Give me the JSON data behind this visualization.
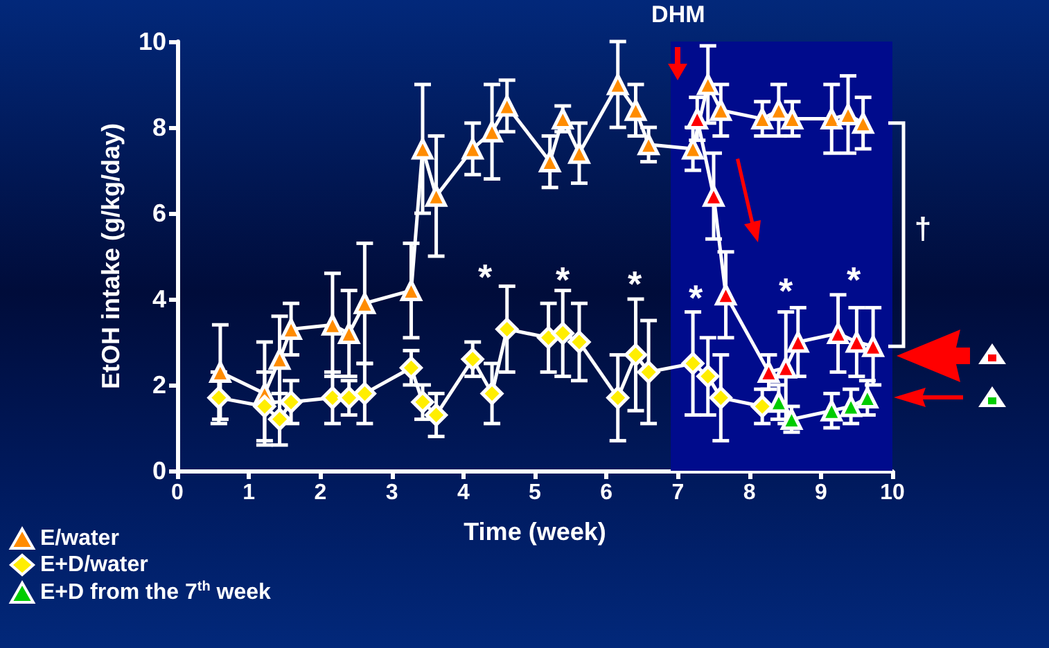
{
  "chart_data": {
    "type": "line",
    "xlabel": "Time (week)",
    "ylabel": "EtOH intake (g/kg/day)",
    "xlim": [
      0,
      10
    ],
    "xticks": [
      0,
      1,
      2,
      3,
      4,
      5,
      6,
      7,
      8,
      9,
      10
    ],
    "ylim": [
      0,
      10
    ],
    "yticks": [
      0,
      2,
      4,
      6,
      8,
      10
    ],
    "grid": false,
    "legend": "bottom left",
    "series": [
      {
        "name": "E/water",
        "color": "#ff8c00",
        "marker": "triangle",
        "x": [
          0.6,
          1.22,
          1.43,
          1.59,
          2.17,
          2.4,
          2.62,
          3.27,
          3.43,
          3.62,
          4.13,
          4.4,
          4.61,
          5.21,
          5.39,
          5.62,
          6.16,
          6.41,
          6.59,
          7.21,
          7.42,
          7.6,
          8.18,
          8.41,
          8.6,
          9.15,
          9.38,
          9.59
        ],
        "values": [
          2.3,
          1.8,
          2.6,
          3.3,
          3.4,
          3.2,
          3.9,
          4.2,
          7.5,
          6.4,
          7.5,
          7.9,
          8.5,
          7.2,
          8.2,
          7.4,
          9.0,
          8.4,
          7.6,
          7.5,
          9.0,
          8.4,
          8.2,
          8.4,
          8.2,
          8.2,
          8.3,
          8.1
        ],
        "errors": [
          1.1,
          1.2,
          1.0,
          0.6,
          1.2,
          1.0,
          1.4,
          1.1,
          1.5,
          1.4,
          0.6,
          1.1,
          0.6,
          0.6,
          0.3,
          0.7,
          1.0,
          0.6,
          0.4,
          0.5,
          0.9,
          0.6,
          0.4,
          0.6,
          0.4,
          0.8,
          0.9,
          0.6
        ]
      },
      {
        "name": "E+D/water",
        "color": "#ffee00",
        "marker": "diamond",
        "x": [
          0.58,
          1.22,
          1.43,
          1.59,
          2.17,
          2.4,
          2.62,
          3.27,
          3.43,
          3.62,
          4.13,
          4.4,
          4.61,
          5.19,
          5.39,
          5.62,
          6.16,
          6.41,
          6.59,
          7.21,
          7.42,
          7.6,
          8.18
        ],
        "values": [
          1.7,
          1.5,
          1.2,
          1.6,
          1.7,
          1.7,
          1.8,
          2.4,
          1.6,
          1.3,
          2.6,
          1.8,
          3.3,
          3.1,
          3.2,
          3.0,
          1.7,
          2.7,
          2.3,
          2.5,
          2.2,
          1.7,
          1.5
        ],
        "errors": [
          0.6,
          0.8,
          0.6,
          0.5,
          0.6,
          0.4,
          0.7,
          0.4,
          0.4,
          0.5,
          0.4,
          0.7,
          1.0,
          0.8,
          1.0,
          0.9,
          1.0,
          1.3,
          1.2,
          1.2,
          0.9,
          1.0,
          0.4
        ]
      },
      {
        "name": "E+D from the 7$^{th}$ week",
        "color": "#00cc00",
        "marker": "triangle",
        "x": [
          8.41,
          8.59,
          9.15,
          9.42,
          9.65
        ],
        "values": [
          1.6,
          1.2,
          1.4,
          1.5,
          1.7
        ],
        "errors": [
          0.4,
          0.3,
          0.4,
          0.4,
          0.4
        ]
      },
      {
        "color": "#ff0000",
        "marker": "triangle",
        "x": [
          7.27,
          7.5,
          7.67,
          8.27,
          8.51,
          8.68,
          9.24,
          9.5,
          9.73
        ],
        "values": [
          8.2,
          6.4,
          4.1,
          2.3,
          2.4,
          3.0,
          3.2,
          3.0,
          2.9
        ],
        "errors": [
          0.5,
          1.0,
          1.0,
          0.4,
          1.3,
          0.8,
          0.9,
          0.8,
          0.9
        ]
      }
    ],
    "bands": [
      {
        "axis": "x",
        "from": 6.9,
        "to": 10,
        "label": "DHM",
        "color": "#000b8c"
      }
    ],
    "annotations": [
      "*",
      "*",
      "*",
      "*",
      "*",
      "*",
      "†"
    ]
  }
}
